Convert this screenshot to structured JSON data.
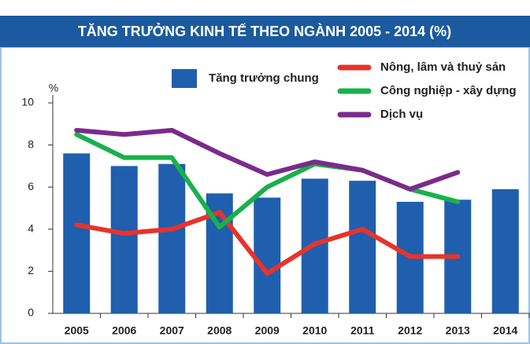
{
  "chart_data": {
    "type": "combo",
    "title": "TĂNG TRƯỞNG KINH TẾ THEO NGÀNH 2005 - 2014 (%)",
    "y_label": "%",
    "categories": [
      "2005",
      "2006",
      "2007",
      "2008",
      "2009",
      "2010",
      "2011",
      "2012",
      "2013",
      "2014"
    ],
    "ylim": [
      0,
      10
    ],
    "yticks": [
      0,
      2,
      4,
      6,
      8,
      10
    ],
    "grid": false,
    "series": [
      {
        "name": "Tăng trưởng chung",
        "type": "bar",
        "color": "#1f5fae",
        "values": [
          7.6,
          7.0,
          7.1,
          5.7,
          5.5,
          6.4,
          6.3,
          5.3,
          5.4,
          5.9
        ]
      },
      {
        "name": "Nông, lâm và thuỷ sản",
        "type": "line",
        "color": "#e8332a",
        "values": [
          4.2,
          3.8,
          4.0,
          4.8,
          1.9,
          3.3,
          4.0,
          2.7,
          2.7,
          null
        ]
      },
      {
        "name": "Công nghiệp - xây dựng",
        "type": "line",
        "color": "#18b14a",
        "values": [
          8.5,
          7.4,
          7.4,
          4.1,
          6.0,
          7.1,
          6.8,
          5.9,
          5.3,
          null
        ]
      },
      {
        "name": "Dịch vụ",
        "type": "line",
        "color": "#7b2a8c",
        "values": [
          8.7,
          8.5,
          8.7,
          7.6,
          6.6,
          7.2,
          6.8,
          5.9,
          6.7,
          null
        ]
      }
    ]
  }
}
